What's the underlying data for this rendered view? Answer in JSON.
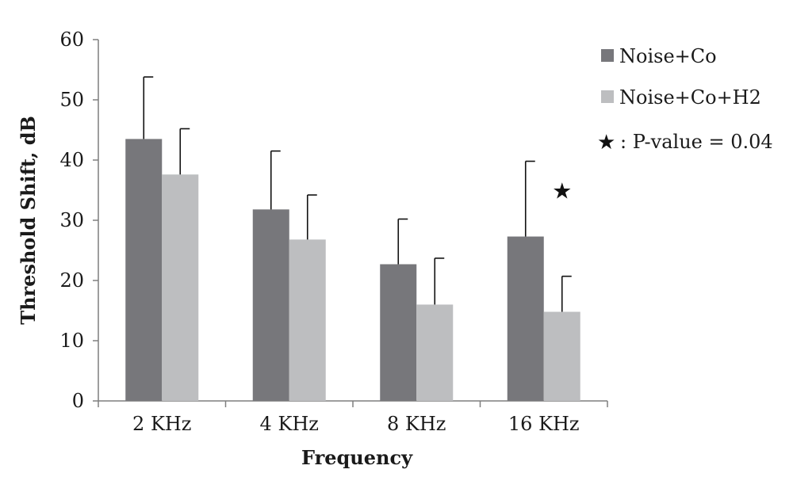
{
  "chart_data": {
    "type": "bar",
    "categories": [
      "2 KHz",
      "4 KHz",
      "8 KHz",
      "16  KHz"
    ],
    "series": [
      {
        "name": "Noise+Co",
        "color": "#77777b",
        "values": [
          43.5,
          31.8,
          22.7,
          27.3
        ],
        "error": [
          10.3,
          9.7,
          7.5,
          12.5
        ]
      },
      {
        "name": "Noise+Co+H2",
        "color": "#bdbec0",
        "values": [
          37.6,
          26.8,
          16.0,
          14.8
        ],
        "error": [
          7.6,
          7.4,
          7.7,
          5.9
        ]
      }
    ],
    "xlabel": "Frequency",
    "ylabel": "Threshold Shift, dB",
    "ylim": [
      0,
      60
    ],
    "yticks": [
      0,
      10,
      20,
      30,
      40,
      50,
      60
    ],
    "grid": false,
    "legend_position": "right",
    "annotation": {
      "symbol": "★",
      "text": ": P-value = 0.04",
      "category": "16  KHz",
      "series": "Noise+Co+H2"
    }
  }
}
